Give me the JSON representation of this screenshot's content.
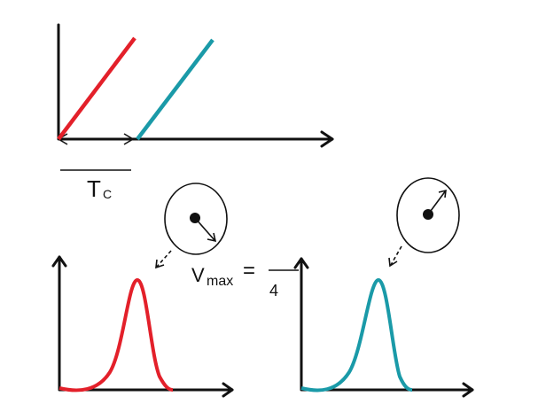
{
  "labels": {
    "period": "T",
    "period_sub": "C",
    "velocity": "V",
    "velocity_sub": "max",
    "equals": "=",
    "denominator": "4"
  }
}
